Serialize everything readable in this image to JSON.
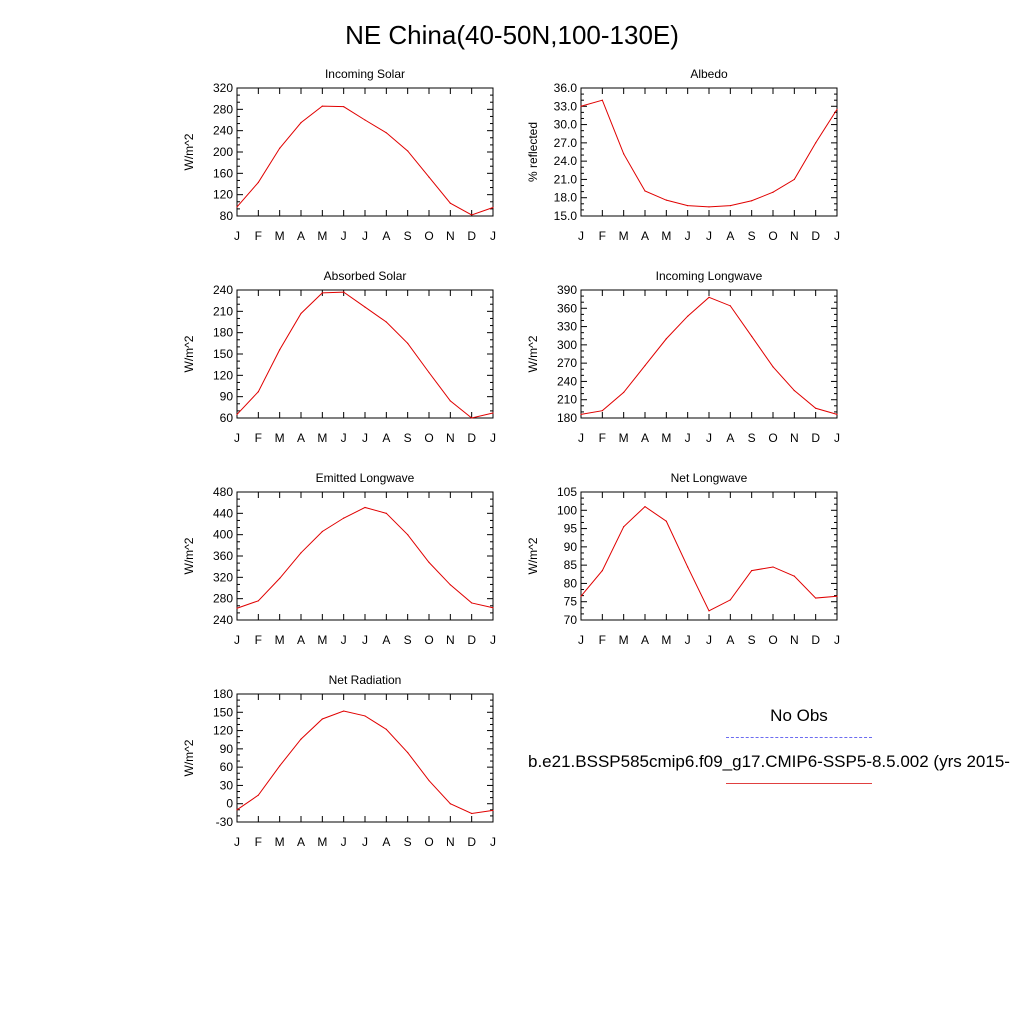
{
  "title": "NE China(40-50N,100-130E)",
  "legend": {
    "entries": [
      {
        "label": "No Obs",
        "color": "#6b6bf0",
        "style": "dashed"
      },
      {
        "label": "b.e21.BSSP585cmip6.f09_g17.CMIP6-SSP5-8.5.002 (yrs 2015-",
        "color": "#e04040",
        "style": "solid"
      }
    ]
  },
  "chart_data": [
    {
      "type": "line",
      "title": "Incoming Solar",
      "ylabel": "W/m^2",
      "categories": [
        "J",
        "F",
        "M",
        "A",
        "M",
        "J",
        "J",
        "A",
        "S",
        "O",
        "N",
        "D",
        "J"
      ],
      "ylim": [
        80,
        320
      ],
      "yticks": [
        "320",
        "280",
        "240",
        "200",
        "160",
        "120",
        "80"
      ],
      "series": [
        {
          "color": "#e00000",
          "values": [
            97,
            143,
            207,
            255,
            286,
            285,
            260,
            236,
            202,
            153,
            104,
            82,
            96
          ]
        }
      ]
    },
    {
      "type": "line",
      "title": "Albedo",
      "ylabel": "% reflected",
      "categories": [
        "J",
        "F",
        "M",
        "A",
        "M",
        "J",
        "J",
        "A",
        "S",
        "O",
        "N",
        "D",
        "J"
      ],
      "ylim": [
        15.0,
        36.0
      ],
      "yticks": [
        "36.0",
        "33.0",
        "30.0",
        "27.0",
        "24.0",
        "21.0",
        "18.0",
        "15.0"
      ],
      "series": [
        {
          "color": "#e00000",
          "values": [
            33.0,
            34.0,
            25.2,
            19.1,
            17.6,
            16.7,
            16.5,
            16.7,
            17.5,
            18.9,
            21.0,
            27.0,
            32.5
          ]
        }
      ]
    },
    {
      "type": "line",
      "title": "Absorbed Solar",
      "ylabel": "W/m^2",
      "categories": [
        "J",
        "F",
        "M",
        "A",
        "M",
        "J",
        "J",
        "A",
        "S",
        "O",
        "N",
        "D",
        "J"
      ],
      "ylim": [
        60,
        240
      ],
      "yticks": [
        "240",
        "210",
        "180",
        "150",
        "120",
        "90",
        "60"
      ],
      "series": [
        {
          "color": "#e00000",
          "values": [
            65,
            97,
            156,
            207,
            236,
            237,
            216,
            195,
            165,
            124,
            84,
            60,
            67
          ]
        }
      ]
    },
    {
      "type": "line",
      "title": "Incoming Longwave",
      "ylabel": "W/m^2",
      "categories": [
        "J",
        "F",
        "M",
        "A",
        "M",
        "J",
        "J",
        "A",
        "S",
        "O",
        "N",
        "D",
        "J"
      ],
      "ylim": [
        180,
        390
      ],
      "yticks": [
        "390",
        "360",
        "330",
        "300",
        "270",
        "240",
        "210",
        "180"
      ],
      "series": [
        {
          "color": "#e00000",
          "values": [
            186,
            192,
            222,
            266,
            310,
            347,
            378,
            364,
            314,
            264,
            225,
            196,
            186
          ]
        }
      ]
    },
    {
      "type": "line",
      "title": "Emitted Longwave",
      "ylabel": "W/m^2",
      "categories": [
        "J",
        "F",
        "M",
        "A",
        "M",
        "J",
        "J",
        "A",
        "S",
        "O",
        "N",
        "D",
        "J"
      ],
      "ylim": [
        240,
        480
      ],
      "yticks": [
        "480",
        "440",
        "400",
        "360",
        "320",
        "280",
        "240"
      ],
      "series": [
        {
          "color": "#e00000",
          "values": [
            262,
            276,
            318,
            366,
            406,
            431,
            451,
            440,
            400,
            348,
            306,
            272,
            263
          ]
        }
      ]
    },
    {
      "type": "line",
      "title": "Net Longwave",
      "ylabel": "W/m^2",
      "categories": [
        "J",
        "F",
        "M",
        "A",
        "M",
        "J",
        "J",
        "A",
        "S",
        "O",
        "N",
        "D",
        "J"
      ],
      "ylim": [
        70,
        105
      ],
      "yticks": [
        "105",
        "100",
        "95",
        "90",
        "85",
        "80",
        "75",
        "70"
      ],
      "series": [
        {
          "color": "#e00000",
          "values": [
            76.5,
            83.5,
            95.5,
            101,
            97,
            84.5,
            72.5,
            75.5,
            83.5,
            84.5,
            82,
            76,
            76.5
          ]
        }
      ]
    },
    {
      "type": "line",
      "title": "Net Radiation",
      "ylabel": "W/m^2",
      "categories": [
        "J",
        "F",
        "M",
        "A",
        "M",
        "J",
        "J",
        "A",
        "S",
        "O",
        "N",
        "D",
        "J"
      ],
      "ylim": [
        -30,
        180
      ],
      "yticks": [
        "180",
        "150",
        "120",
        "90",
        "60",
        "30",
        "0",
        "-30"
      ],
      "series": [
        {
          "color": "#e00000",
          "values": [
            -10,
            14,
            62,
            106,
            139,
            152,
            144,
            122,
            84,
            38,
            0,
            -16,
            -11
          ]
        }
      ]
    }
  ]
}
